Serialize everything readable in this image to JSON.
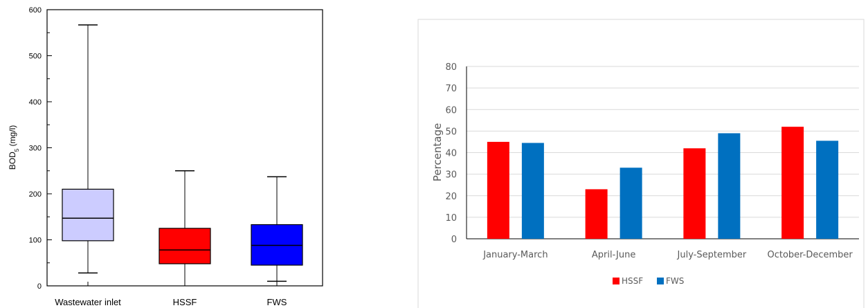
{
  "chart_data": [
    {
      "type": "box",
      "ylabel": "BOD5 (mg/l)",
      "ylabel_parts": [
        "BOD",
        "5",
        " (mg/l)"
      ],
      "ylim": [
        0,
        600
      ],
      "yticks": [
        0,
        100,
        200,
        300,
        400,
        500,
        600
      ],
      "categories": [
        "Wastewater inlet",
        "HSSF",
        "FWS"
      ],
      "boxes": [
        {
          "name": "Wastewater inlet",
          "min": 28,
          "q1": 98,
          "median": 147,
          "q3": 210,
          "max": 567,
          "color": "#ccccff"
        },
        {
          "name": "HSSF",
          "min": 0,
          "q1": 48,
          "median": 78,
          "q3": 125,
          "max": 250,
          "color": "#ff0000"
        },
        {
          "name": "FWS",
          "min": 10,
          "q1": 45,
          "median": 88,
          "q3": 133,
          "max": 237,
          "color": "#0000ff"
        }
      ]
    },
    {
      "type": "bar",
      "ylabel": "Percentage",
      "ylim": [
        0,
        80
      ],
      "yticks": [
        0,
        10,
        20,
        30,
        40,
        50,
        60,
        70,
        80
      ],
      "categories": [
        "January-March",
        "April-June",
        "July-September",
        "October-December"
      ],
      "series": [
        {
          "name": "HSSF",
          "color": "#ff0000",
          "values": [
            45,
            23,
            42,
            52
          ]
        },
        {
          "name": "FWS",
          "color": "#0070c0",
          "values": [
            44.5,
            33,
            49,
            45.5
          ]
        }
      ],
      "grid": true,
      "legend": "bottom"
    }
  ]
}
